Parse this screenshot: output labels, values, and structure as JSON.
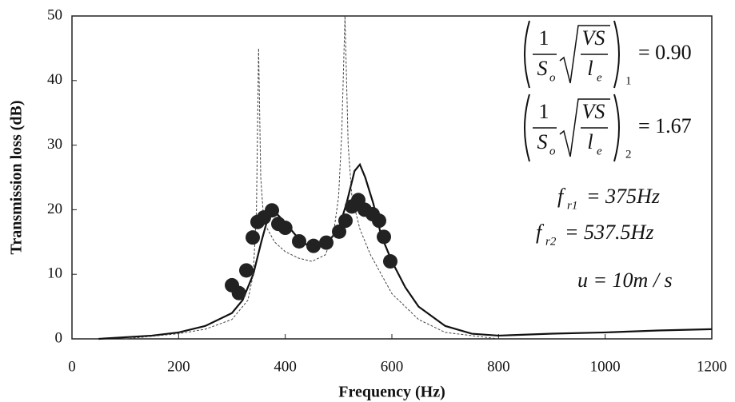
{
  "chart_data": {
    "type": "line",
    "xlabel": "Frequency (Hz)",
    "ylabel": "Transmission loss (dB)",
    "xlim": [
      0,
      1200
    ],
    "ylim": [
      0,
      50
    ],
    "xticks": [
      0,
      200,
      400,
      600,
      800,
      1000,
      1200
    ],
    "yticks": [
      0,
      10,
      20,
      30,
      40,
      50
    ],
    "series": [
      {
        "style": "thick",
        "color": "#111111",
        "x": [
          50,
          150,
          200,
          250,
          300,
          320,
          340,
          355,
          365,
          375,
          385,
          400,
          425,
          450,
          475,
          500,
          515,
          530,
          540,
          550,
          565,
          580,
          600,
          625,
          650,
          700,
          750,
          800,
          900,
          1000,
          1100,
          1200
        ],
        "values": [
          0,
          0.5,
          1,
          2,
          4,
          6,
          10,
          15,
          18,
          19.5,
          19.3,
          18,
          15.5,
          14,
          14.5,
          17,
          21,
          26,
          27,
          25,
          21,
          16,
          12,
          8,
          5,
          2,
          0.8,
          0.5,
          0.8,
          1,
          1.3,
          1.5
        ]
      },
      {
        "style": "thin",
        "color": "#444444",
        "x": [
          100,
          200,
          250,
          300,
          330,
          340,
          346,
          350,
          354,
          360,
          380,
          400,
          425,
          450,
          475,
          490,
          500,
          506,
          512,
          518,
          525,
          540,
          560,
          600,
          650,
          700,
          800
        ],
        "values": [
          0,
          0.8,
          1.5,
          3,
          6,
          10,
          20,
          45,
          25,
          18,
          15,
          13.5,
          12.5,
          12,
          13,
          16,
          22,
          32,
          50,
          30,
          22,
          17,
          13,
          7,
          3,
          1,
          0
        ]
      },
      {
        "style": "points",
        "color": "#222222",
        "x": [
          300,
          313,
          327,
          339,
          348,
          360,
          375,
          387,
          400,
          426,
          453,
          477,
          501,
          513,
          525,
          537,
          549,
          564,
          576,
          585,
          597
        ],
        "values": [
          8.3,
          7.1,
          10.6,
          15.7,
          18.1,
          18.8,
          19.9,
          17.8,
          17.2,
          15.1,
          14.4,
          14.9,
          16.6,
          18.3,
          20.5,
          21.5,
          20,
          19.3,
          18.3,
          15.8,
          12
        ]
      }
    ],
    "formulas": [
      {
        "num": "1",
        "den": "S",
        "den_sub": "o",
        "root_num": "VS",
        "root_den": "l",
        "root_den_sub": "e",
        "sub": "1",
        "value": "= 0.90"
      },
      {
        "num": "1",
        "den": "S",
        "den_sub": "o",
        "root_num": "VS",
        "root_den": "l",
        "root_den_sub": "e",
        "sub": "2",
        "value": "= 1.67"
      }
    ],
    "annotations": [
      {
        "text": "f",
        "sub": "r1",
        "value": "= 375Hz"
      },
      {
        "text": "f",
        "sub": "r2",
        "value": "= 537.5Hz"
      },
      {
        "text": "u = 10m / s"
      }
    ]
  }
}
